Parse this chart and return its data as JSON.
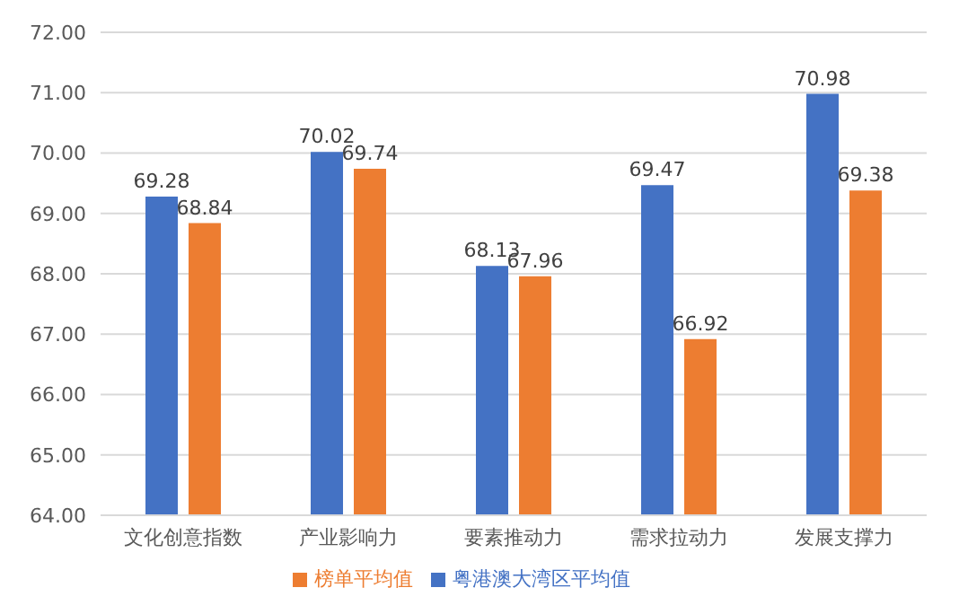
{
  "chart_data": {
    "type": "bar",
    "categories": [
      "文化创意指数",
      "产业影响力",
      "要素推动力",
      "需求拉动力",
      "发展支撑力"
    ],
    "series": [
      {
        "name": "粤港澳大湾区平均值",
        "color": "#4472c4",
        "values": [
          69.28,
          70.02,
          68.13,
          69.47,
          70.98
        ]
      },
      {
        "name": "榜单平均值",
        "color": "#ed7d31",
        "values": [
          68.84,
          69.74,
          67.96,
          66.92,
          69.38
        ]
      }
    ],
    "ylim": [
      64,
      72
    ],
    "yticks": [
      {
        "value": 64,
        "label": "64.00"
      },
      {
        "value": 65,
        "label": "65.00"
      },
      {
        "value": 66,
        "label": "66.00"
      },
      {
        "value": 67,
        "label": "67.00"
      },
      {
        "value": 68,
        "label": "68.00"
      },
      {
        "value": 69,
        "label": "69.00"
      },
      {
        "value": 70,
        "label": "70.00"
      },
      {
        "value": 71,
        "label": "71.00"
      },
      {
        "value": 72,
        "label": "72.00"
      }
    ],
    "grid": "y",
    "legend": "bottom",
    "data_labels": true
  }
}
